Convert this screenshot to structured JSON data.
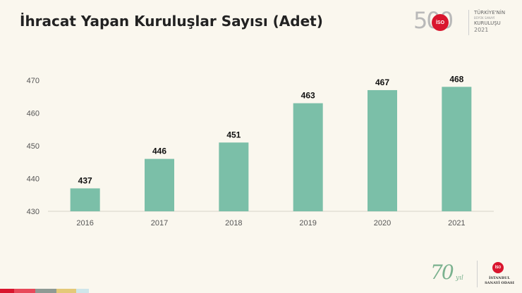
{
  "title": "İhracat Yapan Kuruluşlar Sayısı (Adet)",
  "logo_top": {
    "number": "500",
    "seal": "İSO",
    "line1": "TÜRKİYE'NİN",
    "line2": "BÜYÜK SANAYİ",
    "line3": "KURULUŞU",
    "year": "2021"
  },
  "logo_bottom": {
    "number": "70",
    "suffix": "yıl",
    "seal": "İSO",
    "line1": "İSTANBUL",
    "line2": "SANAYİ ODASI"
  },
  "colors": {
    "bar": "#7bbfa8",
    "axis_text": "#555555",
    "label_text": "#111111",
    "bottom_bar": [
      "#d9162e",
      "#e8495a",
      "#8f9a94",
      "#e4c978",
      "#cfe6ea"
    ]
  },
  "chart_data": {
    "type": "bar",
    "categories": [
      "2016",
      "2017",
      "2018",
      "2019",
      "2020",
      "2021"
    ],
    "values": [
      437,
      446,
      451,
      463,
      467,
      468
    ],
    "title": "İhracat Yapan Kuruluşlar Sayısı (Adet)",
    "xlabel": "",
    "ylabel": "",
    "ylim": [
      430,
      470
    ],
    "yticks": [
      430,
      440,
      450,
      460,
      470
    ],
    "grid": false,
    "data_labels": true
  }
}
